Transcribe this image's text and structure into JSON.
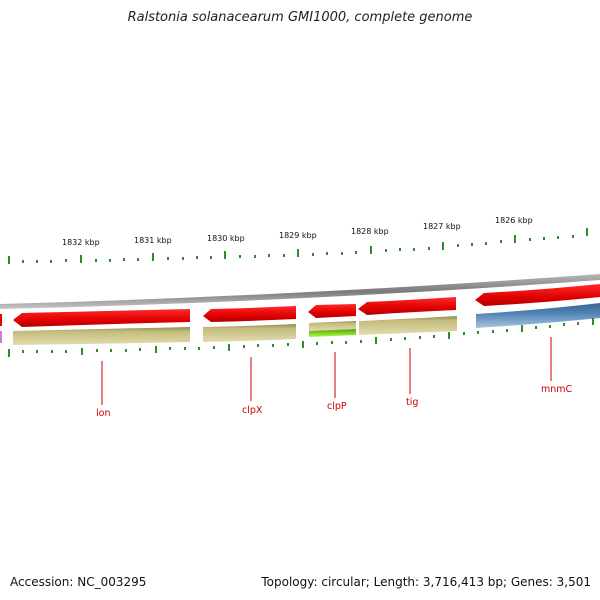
{
  "title": "Ralstonia solanacearum GMI1000, complete genome",
  "footer": {
    "accession": "Accession: NC_003295",
    "stats": "Topology: circular; Length: 3,716,413 bp; Genes: 3,501"
  },
  "ruler": [
    "1832 kbp",
    "1831 kbp",
    "1830 kbp",
    "1829 kbp",
    "1828 kbp",
    "1827 kbp",
    "1826 kbp"
  ],
  "genes": [
    "lon",
    "clpX",
    "clpP",
    "tig",
    "mnmC"
  ],
  "colors": {
    "cds_forward": "#e80000",
    "gene_track": "#c9c184",
    "highlight_gene": "#7fe010",
    "mnmC_track": "#4f82b4",
    "ticks": "#2e8b2e",
    "backbone": "#8a8a8a",
    "labels": "#cc0000"
  }
}
